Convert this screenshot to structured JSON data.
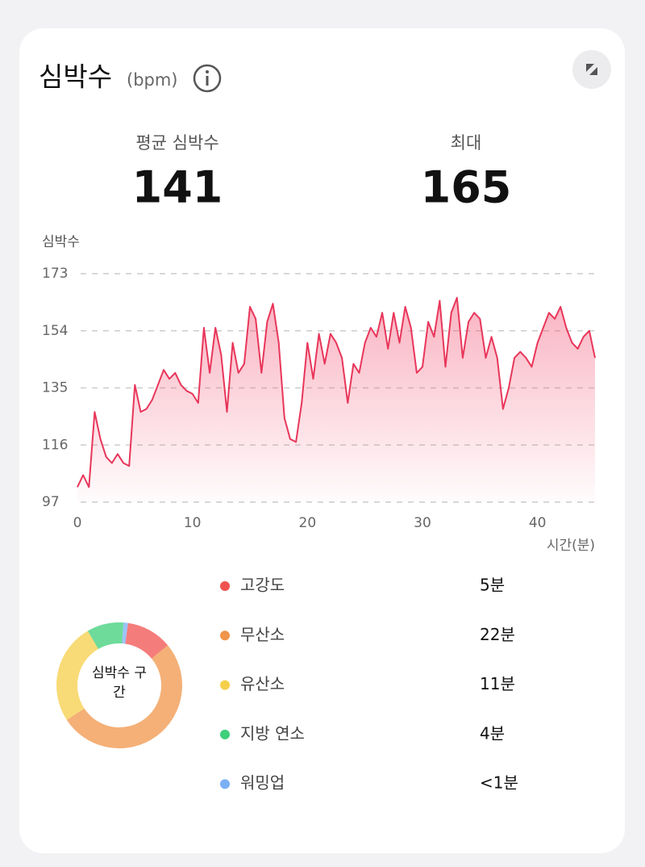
{
  "header": {
    "title": "심박수",
    "unit": "(bpm)"
  },
  "stats": [
    {
      "label": "평균 심박수",
      "value": 141
    },
    {
      "label": "최대",
      "value": 165
    }
  ],
  "chart_data": [
    {
      "type": "area-line",
      "y_label": "심박수",
      "x_label": "시간(분)",
      "xlim": [
        0,
        45
      ],
      "xticks": [
        0,
        10,
        20,
        30,
        40
      ],
      "ylim": [
        97,
        173
      ],
      "yticks": [
        97,
        116,
        135,
        154,
        173
      ],
      "grid": true,
      "x": [
        0,
        0.5,
        1,
        1.5,
        2,
        2.5,
        3,
        3.5,
        4,
        4.5,
        5,
        5.5,
        6,
        6.5,
        7,
        7.5,
        8,
        8.5,
        9,
        9.5,
        10,
        10.5,
        11,
        11.5,
        12,
        12.5,
        13,
        13.5,
        14,
        14.5,
        15,
        15.5,
        16,
        16.5,
        17,
        17.5,
        18,
        18.5,
        19,
        19.5,
        20,
        20.5,
        21,
        21.5,
        22,
        22.5,
        23,
        23.5,
        24,
        24.5,
        25,
        25.5,
        26,
        26.5,
        27,
        27.5,
        28,
        28.5,
        29,
        29.5,
        30,
        30.5,
        31,
        31.5,
        32,
        32.5,
        33,
        33.5,
        34,
        34.5,
        35,
        35.5,
        36,
        36.5,
        37,
        37.5,
        38,
        38.5,
        39,
        39.5,
        40,
        40.5,
        41,
        41.5,
        42,
        42.5,
        43,
        43.5,
        44,
        44.5,
        45
      ],
      "series": [
        {
          "name": "심박수",
          "color": "#e8365a",
          "values": [
            102,
            106,
            102,
            127,
            118,
            112,
            110,
            113,
            110,
            109,
            136,
            127,
            128,
            131,
            136,
            141,
            138,
            140,
            136,
            134,
            133,
            130,
            155,
            140,
            155,
            146,
            127,
            150,
            140,
            143,
            162,
            158,
            140,
            157,
            163,
            150,
            125,
            118,
            117,
            130,
            150,
            138,
            153,
            143,
            153,
            150,
            145,
            130,
            143,
            140,
            150,
            155,
            152,
            160,
            148,
            160,
            150,
            162,
            155,
            140,
            142,
            157,
            152,
            164,
            142,
            160,
            165,
            145,
            157,
            160,
            158,
            145,
            152,
            145,
            128,
            135,
            145,
            147,
            145,
            142,
            150,
            155,
            160,
            158,
            162,
            155,
            150,
            148,
            152,
            154,
            145
          ]
        }
      ]
    },
    {
      "type": "donut",
      "title": "심박수 구간",
      "categories": [
        "고강도",
        "무산소",
        "유산소",
        "지방 연소",
        "워밍업"
      ],
      "values": [
        5,
        22,
        11,
        4,
        0.5
      ],
      "value_labels": [
        "5분",
        "22분",
        "11분",
        "4분",
        "<1분"
      ],
      "colors": [
        "#f0524f",
        "#f0954a",
        "#f5cf4a",
        "#3ecf7a",
        "#7ab0f5"
      ]
    }
  ]
}
